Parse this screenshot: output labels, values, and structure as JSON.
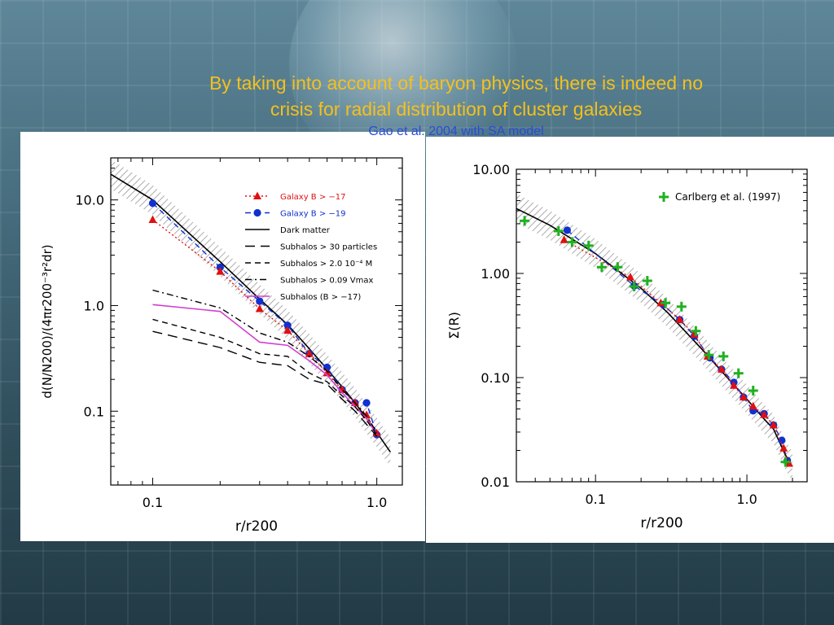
{
  "slide": {
    "title_line1": "By taking into account of baryon physics, there is indeed  no",
    "title_line2": "crisis for radial distribution of  cluster galaxies",
    "subtitle": "Gao et al. 2004 with SA model",
    "title_color": "#f5c01c",
    "subtitle_color": "#2a4bd6"
  },
  "chart_data": [
    {
      "type": "line",
      "log_x": true,
      "log_y": true,
      "xlim": [
        0.065,
        1.3
      ],
      "ylim": [
        0.02,
        25
      ],
      "xticks": [
        {
          "v": 0.1,
          "label": "0.1"
        },
        {
          "v": 1.0,
          "label": "1.0"
        }
      ],
      "yticks": [
        {
          "v": 0.1,
          "label": "0.1"
        },
        {
          "v": 1.0,
          "label": "1.0"
        },
        {
          "v": 10.0,
          "label": "10.0"
        }
      ],
      "xlabel": "r/r200",
      "ylabel": "d(N/N200)/(4πr200⁻³r²dr)",
      "legend_position": "top-right",
      "legend": [
        {
          "label": "Galaxy B > −17",
          "color": "#e01010",
          "style": "dotted",
          "marker": "triangle"
        },
        {
          "label": "Galaxy B > −19",
          "color": "#1030d0",
          "style": "dashed",
          "marker": "circle"
        },
        {
          "label": "Dark matter",
          "color": "#000000",
          "style": "solid"
        },
        {
          "label": "Subhalos > 30 particles",
          "color": "#000000",
          "style": "longdash"
        },
        {
          "label": "Subhalos > 2.0 10⁻⁴ M",
          "color": "#000000",
          "style": "dashed"
        },
        {
          "label": "Subhalos > 0.09 Vmax",
          "color": "#000000",
          "style": "dashdot"
        },
        {
          "label": "Subhalos (B > −17)",
          "color": "#d040d0",
          "style": "solid"
        }
      ],
      "band": {
        "x": [
          0.065,
          0.1,
          0.2,
          0.3,
          0.4,
          0.5,
          0.6,
          0.7,
          0.8,
          0.9,
          1.0,
          1.15
        ],
        "y": [
          17.5,
          10.0,
          2.6,
          1.15,
          0.66,
          0.39,
          0.25,
          0.17,
          0.12,
          0.085,
          0.063,
          0.041
        ],
        "width_dex": 0.14
      },
      "series": [
        {
          "name": "Dark matter",
          "style": "solid",
          "color": "#000000",
          "x": [
            0.065,
            0.1,
            0.2,
            0.3,
            0.4,
            0.5,
            0.6,
            0.7,
            0.8,
            0.9,
            1.0,
            1.15
          ],
          "y": [
            17.5,
            10.0,
            2.6,
            1.15,
            0.66,
            0.39,
            0.25,
            0.17,
            0.12,
            0.085,
            0.063,
            0.041
          ]
        },
        {
          "name": "Galaxy B > −19",
          "style": "dashed",
          "color": "#1030d0",
          "marker": "circle",
          "x": [
            0.1,
            0.2,
            0.3,
            0.4,
            0.5,
            0.6,
            0.7,
            0.8,
            0.9,
            1.0
          ],
          "y": [
            9.3,
            2.3,
            1.1,
            0.65,
            0.35,
            0.26,
            0.16,
            0.12,
            0.12,
            0.06
          ]
        },
        {
          "name": "Galaxy B > −17",
          "style": "dotted",
          "color": "#e01010",
          "marker": "triangle",
          "x": [
            0.1,
            0.2,
            0.3,
            0.4,
            0.5,
            0.6,
            0.7,
            0.8,
            0.9,
            1.0
          ],
          "y": [
            6.5,
            2.1,
            0.93,
            0.58,
            0.35,
            0.23,
            0.16,
            0.12,
            0.092,
            0.062
          ]
        },
        {
          "name": "Subhalos > 0.09 Vmax",
          "style": "dashdot",
          "color": "#000000",
          "x": [
            0.1,
            0.2,
            0.3,
            0.4,
            0.5,
            0.6,
            0.7,
            0.8,
            0.9,
            1.0
          ],
          "y": [
            1.4,
            0.95,
            0.55,
            0.45,
            0.33,
            0.24,
            0.16,
            0.12,
            0.09,
            0.063
          ]
        },
        {
          "name": "Subhalos (B > −17)",
          "style": "solid",
          "color": "#d040d0",
          "x": [
            0.1,
            0.2,
            0.3,
            0.4,
            0.5,
            0.6,
            0.7,
            0.8,
            0.9,
            1.0
          ],
          "y": [
            1.02,
            0.88,
            0.45,
            0.42,
            0.3,
            0.22,
            0.15,
            0.11,
            0.085,
            0.06
          ]
        },
        {
          "name": "Subhalos > 2.0 10⁻⁴ M",
          "style": "dashed",
          "color": "#000000",
          "x": [
            0.1,
            0.2,
            0.3,
            0.4,
            0.5,
            0.6,
            0.7,
            0.8,
            0.9,
            1.0
          ],
          "y": [
            0.74,
            0.5,
            0.35,
            0.33,
            0.23,
            0.19,
            0.14,
            0.11,
            0.082,
            0.06
          ]
        },
        {
          "name": "Subhalos > 30 particles",
          "style": "longdash",
          "color": "#000000",
          "x": [
            0.1,
            0.2,
            0.3,
            0.4,
            0.5,
            0.6,
            0.7,
            0.8,
            0.9,
            1.0
          ],
          "y": [
            0.57,
            0.4,
            0.29,
            0.27,
            0.2,
            0.18,
            0.13,
            0.1,
            0.075,
            0.058
          ]
        }
      ]
    },
    {
      "type": "line",
      "log_x": true,
      "log_y": true,
      "xlim": [
        0.03,
        2.5
      ],
      "ylim": [
        0.01,
        10
      ],
      "xticks": [
        {
          "v": 0.1,
          "label": "0.1"
        },
        {
          "v": 1.0,
          "label": "1.0"
        }
      ],
      "yticks": [
        {
          "v": 0.01,
          "label": "0.01"
        },
        {
          "v": 0.1,
          "label": "0.10"
        },
        {
          "v": 1.0,
          "label": "1.00"
        },
        {
          "v": 10.0,
          "label": "10.00"
        }
      ],
      "xlabel": "r/r200",
      "ylabel": "Σ(R)",
      "legend_position": "top-right",
      "legend": [
        {
          "label": "Carlberg et al. (1997)",
          "color": "#20b020",
          "marker": "plus"
        }
      ],
      "band": {
        "x": [
          0.03,
          0.05,
          0.1,
          0.2,
          0.3,
          0.5,
          0.7,
          1.0,
          1.3,
          1.5,
          1.8,
          2.0
        ],
        "y": [
          4.2,
          2.9,
          1.55,
          0.72,
          0.42,
          0.19,
          0.11,
          0.062,
          0.04,
          0.032,
          0.018,
          0.014
        ],
        "width_dex": 0.14
      },
      "series": [
        {
          "name": "Dark matter",
          "style": "solid",
          "color": "#000000",
          "x": [
            0.03,
            0.05,
            0.1,
            0.2,
            0.3,
            0.5,
            0.7,
            1.0,
            1.3,
            1.5,
            1.8,
            2.0
          ],
          "y": [
            4.2,
            2.9,
            1.55,
            0.72,
            0.42,
            0.19,
            0.11,
            0.062,
            0.04,
            0.032,
            0.018,
            0.014
          ]
        },
        {
          "name": "Galaxy B > −19",
          "style": "dashed",
          "color": "#1030d0",
          "marker": "circle",
          "x": [
            0.065,
            0.18,
            0.28,
            0.36,
            0.45,
            0.57,
            0.68,
            0.82,
            0.95,
            1.1,
            1.3,
            1.5,
            1.7,
            1.85
          ],
          "y": [
            2.6,
            0.76,
            0.5,
            0.36,
            0.25,
            0.155,
            0.12,
            0.09,
            0.065,
            0.048,
            0.045,
            0.035,
            0.025,
            0.016
          ]
        },
        {
          "name": "Galaxy B > −17",
          "style": "dotted",
          "color": "#e01010",
          "marker": "triangle",
          "x": [
            0.062,
            0.17,
            0.27,
            0.36,
            0.45,
            0.55,
            0.68,
            0.82,
            0.95,
            1.1,
            1.3,
            1.5,
            1.75,
            1.9
          ],
          "y": [
            2.1,
            0.92,
            0.52,
            0.36,
            0.26,
            0.16,
            0.12,
            0.084,
            0.065,
            0.053,
            0.044,
            0.035,
            0.021,
            0.015
          ]
        },
        {
          "name": "Carlberg et al. (1997)",
          "style": "none",
          "color": "#20b020",
          "marker": "plus",
          "x": [
            0.034,
            0.057,
            0.07,
            0.09,
            0.11,
            0.14,
            0.18,
            0.22,
            0.29,
            0.37,
            0.46,
            0.56,
            0.7,
            0.88,
            1.1,
            1.8
          ],
          "y": [
            3.2,
            2.55,
            2.0,
            1.85,
            1.15,
            1.15,
            0.75,
            0.85,
            0.52,
            0.48,
            0.28,
            0.165,
            0.16,
            0.11,
            0.075,
            0.0155
          ]
        }
      ]
    }
  ]
}
